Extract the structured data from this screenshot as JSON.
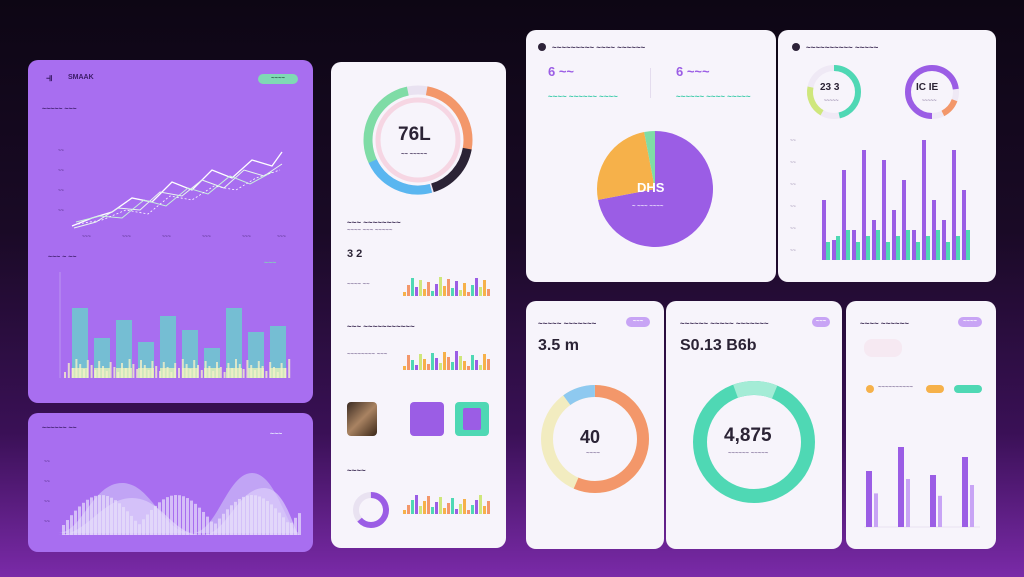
{
  "colors": {
    "purple": "#a86ef0",
    "violet": "#9b5de5",
    "mint": "#4fd8b4",
    "teal": "#5ac6c0",
    "orange": "#f3976a",
    "yellow": "#f6c54a",
    "lime": "#cfe77c"
  },
  "panel_a": {
    "title": "SMAAK",
    "pill": "~~~~",
    "sub": "~~~~~ ~~~",
    "icon": "sparkline-icon",
    "chart2_label": "~~~ ~ ~~",
    "pill2": "~~~"
  },
  "panel_b": {
    "title": "~~~~~~ ~~",
    "pill": "~~~"
  },
  "panel_c": {
    "gauge_value": "76L",
    "gauge_caption": "~~ ~~~~~",
    "sec1_title": "~~~ ~~~~~~~~",
    "sec1_sub": "~~~~ ~~~ ~~~~~",
    "sec1_value": "3 2",
    "sec1_caption": "~~~~ ~~",
    "sec2_title": "~~~ ~~~~~~~~~~~",
    "sec2_sub": "~~~~~~~~ ~~~",
    "sec3_title": "~~~~"
  },
  "panel_d": {
    "title": "~~~~~~~~~ ~~~~ ~~~~~~",
    "metric1": "6 ~~",
    "metric1_label": "~~~~ ~~~~~~ ~~~~",
    "metric2": "6 ~~~",
    "metric2_label": "~~~~~~ ~~~~ ~~~~~",
    "pie_value": "DHS",
    "pie_caption": "~ ~~~ ~~~~"
  },
  "panel_e": {
    "title": "~~~~~~~~~~ ~~~~~",
    "ring1_value": "23 3",
    "ring1_caption": "~~~~~",
    "ring2_value": "IC IE",
    "ring2_caption": "~~~~~"
  },
  "panel_f": {
    "title": "~~~~~ ~~~~~~~",
    "pill": "~~~",
    "value": "3.5 m",
    "ring_value": "40",
    "ring_caption": "~~~~"
  },
  "panel_g": {
    "title": "~~~~~~ ~~~~~ ~~~~~~~",
    "pill": "~~~",
    "value": "S0.13 B6b",
    "ring_value": "4,875",
    "ring_caption": "~~~~~~ ~~~~~"
  },
  "panel_h": {
    "title": "~~~~ ~~~~~~",
    "pill": "~~~~",
    "legend": "~~~~~~~~~~"
  }
}
